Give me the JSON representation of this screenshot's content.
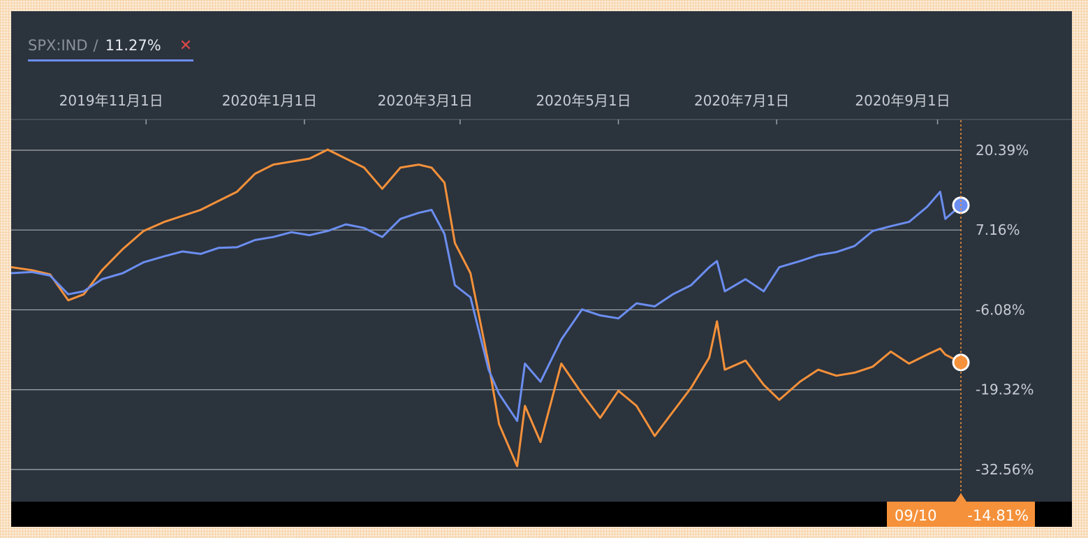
{
  "legend": {
    "symbol": "SPX:IND",
    "separator": "/",
    "value": "11.27%",
    "close_icon": "close-x-icon"
  },
  "colors": {
    "background": "#2b333d",
    "spx": "#6b8ef0",
    "compare": "#f5913a",
    "grid": "#a7abb0",
    "text": "#c8ccd2"
  },
  "chart_data": {
    "type": "line",
    "x_ticks": [
      "2019年11月1日",
      "2020年1月1日",
      "2020年3月1日",
      "2020年5月1日",
      "2020年7月1日",
      "2020年9月1日"
    ],
    "y_ticks": [
      "20.39%",
      "7.16%",
      "-6.08%",
      "-19.32%",
      "-32.56%"
    ],
    "y_tick_values": [
      20.39,
      7.16,
      -6.08,
      -19.32,
      -32.56
    ],
    "ylim": [
      -35.5,
      25.5
    ],
    "x_range": [
      "2019-09-10",
      "2020-09-10"
    ],
    "grid": true,
    "crosshair": {
      "date": "09/10",
      "value": "-14.81%"
    },
    "series": [
      {
        "name": "SPX:IND",
        "color": "#6b8ef0",
        "end_value": 11.27,
        "points": [
          [
            "2019-09-10",
            0.0
          ],
          [
            "2019-09-18",
            0.2
          ],
          [
            "2019-09-25",
            -0.4
          ],
          [
            "2019-10-02",
            -3.5
          ],
          [
            "2019-10-08",
            -3.0
          ],
          [
            "2019-10-15",
            -1.0
          ],
          [
            "2019-10-23",
            0.0
          ],
          [
            "2019-10-31",
            1.8
          ],
          [
            "2019-11-08",
            2.8
          ],
          [
            "2019-11-15",
            3.6
          ],
          [
            "2019-11-22",
            3.2
          ],
          [
            "2019-11-29",
            4.2
          ],
          [
            "2019-12-06",
            4.3
          ],
          [
            "2019-12-13",
            5.5
          ],
          [
            "2019-12-20",
            6.0
          ],
          [
            "2019-12-27",
            6.8
          ],
          [
            "2020-01-03",
            6.3
          ],
          [
            "2020-01-10",
            7.0
          ],
          [
            "2020-01-17",
            8.1
          ],
          [
            "2020-01-24",
            7.5
          ],
          [
            "2020-01-31",
            6.0
          ],
          [
            "2020-02-07",
            9.0
          ],
          [
            "2020-02-14",
            10.0
          ],
          [
            "2020-02-19",
            10.5
          ],
          [
            "2020-02-24",
            6.5
          ],
          [
            "2020-02-28",
            -2.0
          ],
          [
            "2020-03-05",
            -4.0
          ],
          [
            "2020-03-12",
            -16.0
          ],
          [
            "2020-03-16",
            -20.0
          ],
          [
            "2020-03-23",
            -24.5
          ],
          [
            "2020-03-26",
            -15.0
          ],
          [
            "2020-04-01",
            -18.0
          ],
          [
            "2020-04-09",
            -11.0
          ],
          [
            "2020-04-17",
            -6.0
          ],
          [
            "2020-04-24",
            -7.0
          ],
          [
            "2020-05-01",
            -7.5
          ],
          [
            "2020-05-08",
            -5.0
          ],
          [
            "2020-05-15",
            -5.5
          ],
          [
            "2020-05-22",
            -3.5
          ],
          [
            "2020-05-29",
            -2.0
          ],
          [
            "2020-06-05",
            1.0
          ],
          [
            "2020-06-08",
            2.0
          ],
          [
            "2020-06-11",
            -3.0
          ],
          [
            "2020-06-19",
            -1.0
          ],
          [
            "2020-06-26",
            -3.0
          ],
          [
            "2020-07-02",
            1.0
          ],
          [
            "2020-07-10",
            2.0
          ],
          [
            "2020-07-17",
            3.0
          ],
          [
            "2020-07-24",
            3.5
          ],
          [
            "2020-07-31",
            4.5
          ],
          [
            "2020-08-07",
            7.0
          ],
          [
            "2020-08-14",
            7.8
          ],
          [
            "2020-08-21",
            8.5
          ],
          [
            "2020-08-28",
            11.0
          ],
          [
            "2020-09-02",
            13.5
          ],
          [
            "2020-09-04",
            9.0
          ],
          [
            "2020-09-10",
            11.27
          ]
        ]
      },
      {
        "name": "",
        "color": "#f5913a",
        "end_value": -14.81,
        "points": [
          [
            "2019-09-10",
            1.0
          ],
          [
            "2019-09-18",
            0.5
          ],
          [
            "2019-09-25",
            -0.2
          ],
          [
            "2019-10-02",
            -4.5
          ],
          [
            "2019-10-08",
            -3.5
          ],
          [
            "2019-10-15",
            0.5
          ],
          [
            "2019-10-23",
            4.0
          ],
          [
            "2019-10-31",
            7.0
          ],
          [
            "2019-11-08",
            8.5
          ],
          [
            "2019-11-15",
            9.5
          ],
          [
            "2019-11-22",
            10.5
          ],
          [
            "2019-11-29",
            12.0
          ],
          [
            "2019-12-06",
            13.5
          ],
          [
            "2019-12-13",
            16.5
          ],
          [
            "2019-12-20",
            18.0
          ],
          [
            "2019-12-27",
            18.5
          ],
          [
            "2020-01-03",
            19.0
          ],
          [
            "2020-01-10",
            20.5
          ],
          [
            "2020-01-17",
            19.0
          ],
          [
            "2020-01-24",
            17.5
          ],
          [
            "2020-01-31",
            14.0
          ],
          [
            "2020-02-07",
            17.5
          ],
          [
            "2020-02-14",
            18.0
          ],
          [
            "2020-02-19",
            17.5
          ],
          [
            "2020-02-24",
            15.0
          ],
          [
            "2020-02-28",
            5.0
          ],
          [
            "2020-03-05",
            0.0
          ],
          [
            "2020-03-12",
            -15.0
          ],
          [
            "2020-03-16",
            -25.0
          ],
          [
            "2020-03-23",
            -32.0
          ],
          [
            "2020-03-26",
            -22.0
          ],
          [
            "2020-04-01",
            -28.0
          ],
          [
            "2020-04-09",
            -15.0
          ],
          [
            "2020-04-17",
            -20.0
          ],
          [
            "2020-04-24",
            -24.0
          ],
          [
            "2020-05-01",
            -19.5
          ],
          [
            "2020-05-08",
            -22.0
          ],
          [
            "2020-05-15",
            -27.0
          ],
          [
            "2020-05-22",
            -23.0
          ],
          [
            "2020-05-29",
            -19.0
          ],
          [
            "2020-06-05",
            -14.0
          ],
          [
            "2020-06-08",
            -8.0
          ],
          [
            "2020-06-11",
            -16.0
          ],
          [
            "2020-06-19",
            -14.5
          ],
          [
            "2020-06-26",
            -18.5
          ],
          [
            "2020-07-02",
            -21.0
          ],
          [
            "2020-07-10",
            -18.0
          ],
          [
            "2020-07-17",
            -16.0
          ],
          [
            "2020-07-24",
            -17.0
          ],
          [
            "2020-07-31",
            -16.5
          ],
          [
            "2020-08-07",
            -15.5
          ],
          [
            "2020-08-14",
            -13.0
          ],
          [
            "2020-08-21",
            -15.0
          ],
          [
            "2020-08-28",
            -13.5
          ],
          [
            "2020-09-02",
            -12.5
          ],
          [
            "2020-09-04",
            -13.5
          ],
          [
            "2020-09-10",
            -14.81
          ]
        ]
      }
    ]
  }
}
